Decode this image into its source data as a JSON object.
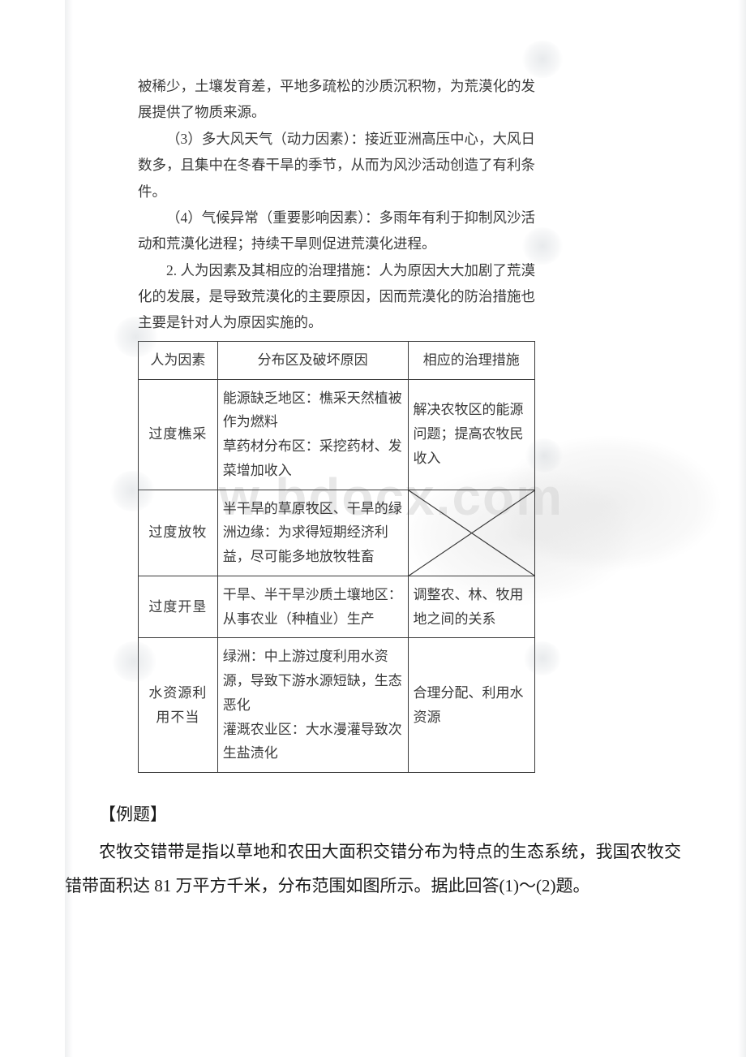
{
  "watermark": "w.bdocx.com",
  "scan": {
    "p1": "被稀少，土壤发育差，平地多疏松的沙质沉积物，为荒漠化的发展提供了物质来源。",
    "p2": "（3）多大风天气（动力因素）：接近亚洲高压中心，大风日数多，且集中在冬春干旱的季节，从而为风沙活动创造了有利条件。",
    "p3": "（4）气候异常（重要影响因素）：多雨年有利于抑制风沙活动和荒漠化进程；持续干旱则促进荒漠化进程。",
    "p4": "2. 人为因素及其相应的治理措施：人为原因大大加剧了荒漠化的发展，是导致荒漠化的主要原因，因而荒漠化的防治措施也主要是针对人为原因实施的。"
  },
  "table": {
    "col_widths": [
      "20%",
      "48%",
      "32%"
    ],
    "header": {
      "c1": "人为因素",
      "c2": "分布区及破坏原因",
      "c3": "相应的治理措施"
    },
    "rows": [
      {
        "c1": "过度樵采",
        "c2": "能源缺乏地区：樵采天然植被作为燃料\n草药材分布区：采挖药材、发菜增加收入",
        "c3": "解决农牧区的能源问题；提高农牧民收入"
      },
      {
        "c1": "过度放牧",
        "c2": "半干旱的草原牧区、干旱的绿洲边缘：为求得短期经济利益，尽可能多地放牧牲畜",
        "c3": "__DIAG__"
      },
      {
        "c1": "过度开垦",
        "c2": "干旱、半干旱沙质土壤地区：从事农业（种植业）生产",
        "c3": "调整农、林、牧用地之间的关系"
      },
      {
        "c1": "水资源利用不当",
        "c2": "绿洲：中上游过度利用水资源，导致下游水源短缺，生态恶化\n灌溉农业区：大水漫灌导致次生盐渍化",
        "c3": "合理分配、利用水资源"
      }
    ]
  },
  "body": {
    "heading": "【例题】",
    "para": "农牧交错带是指以草地和农田大面积交错分布为特点的生态系统，我国农牧交错带面积达 81 万平方千米，分布范围如图所示。据此回答(1)～(2)题。"
  },
  "colors": {
    "text": "#2a2a2a",
    "border": "#3a3a3a",
    "bg": "#ffffff",
    "watermark": "#d6d6d6"
  }
}
